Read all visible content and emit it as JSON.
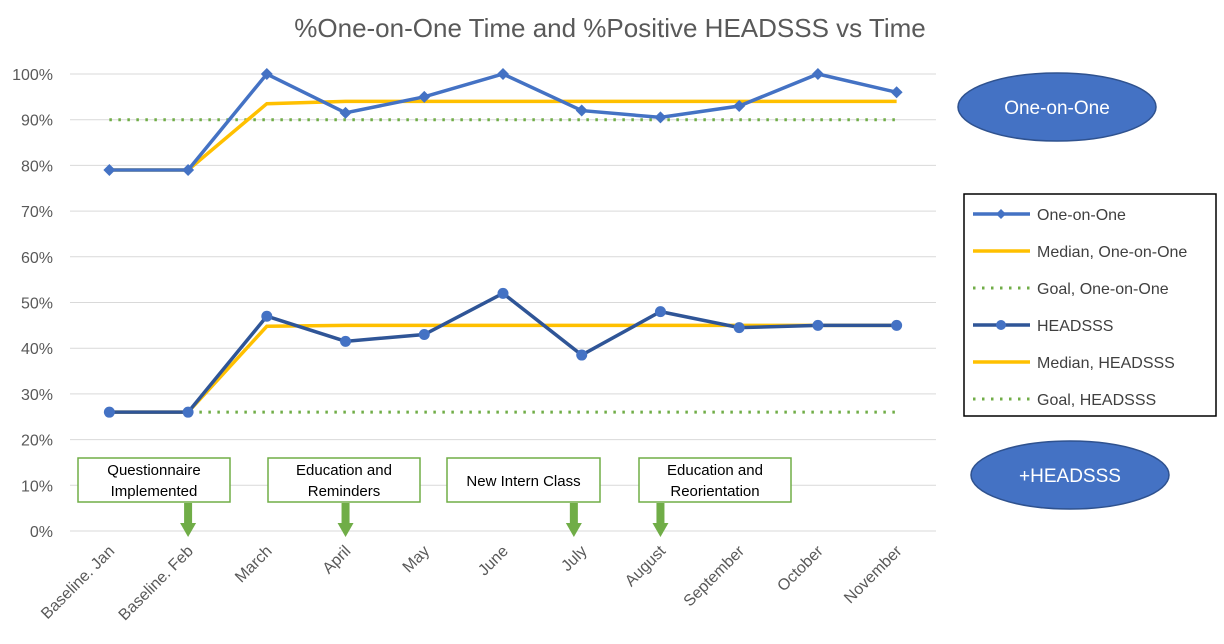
{
  "chart_data": {
    "type": "line",
    "title": "%One-on-One Time and %Positive HEADSSS vs Time",
    "xlabel": "",
    "ylabel": "",
    "categories": [
      "Baseline. Jan",
      "Baseline. Feb",
      "March",
      "April",
      "May",
      "June",
      "July",
      "August",
      "September",
      "October",
      "November"
    ],
    "ylim": [
      0,
      100
    ],
    "y_ticks": [
      "0%",
      "10%",
      "20%",
      "30%",
      "40%",
      "50%",
      "60%",
      "70%",
      "80%",
      "90%",
      "100%"
    ],
    "grid": true,
    "legend_position": "right",
    "series": [
      {
        "name": "One-on-One",
        "values": [
          79,
          79,
          100,
          91.5,
          95,
          100,
          92,
          90.5,
          93,
          100,
          96
        ],
        "color": "#4472C4",
        "style": "line",
        "marker": "diamond"
      },
      {
        "name": "Median, One-on-One",
        "values": [
          79,
          79,
          93.5,
          94,
          94,
          94,
          94,
          94,
          94,
          94,
          94
        ],
        "color": "#FFC000",
        "style": "line",
        "marker": "none"
      },
      {
        "name": "Goal, One-on-One",
        "values": [
          90,
          90,
          90,
          90,
          90,
          90,
          90,
          90,
          90,
          90,
          90
        ],
        "color": "#70AD47",
        "style": "dotted",
        "marker": "none"
      },
      {
        "name": "HEADSSS",
        "values": [
          26,
          26,
          47,
          41.5,
          43,
          52,
          38.5,
          48,
          44.5,
          45,
          45
        ],
        "color": "#2F5597",
        "style": "line",
        "marker": "circle"
      },
      {
        "name": "Median, HEADSSS",
        "values": [
          26,
          26,
          44.8,
          45,
          45,
          45,
          45,
          45,
          45,
          45,
          45
        ],
        "color": "#FFC000",
        "style": "line",
        "marker": "none"
      },
      {
        "name": "Goal, HEADSSS",
        "values": [
          26,
          26,
          26,
          26,
          26,
          26,
          26,
          26,
          26,
          26,
          26
        ],
        "color": "#70AD47",
        "style": "dotted",
        "marker": "none"
      }
    ],
    "annotations": [
      {
        "text": "Questionnaire Implemented",
        "line1": "Questionnaire",
        "line2": "Implemented",
        "arrow_at": 1
      },
      {
        "text": "Education and Reminders",
        "line1": "Education and",
        "line2": "Reminders",
        "arrow_at": 3
      },
      {
        "text": "New Intern Class",
        "line1": "New Intern Class",
        "line2": "",
        "arrow_at": 5.9
      },
      {
        "text": "Education and Reorientation",
        "line1": "Education and",
        "line2": "Reorientation",
        "arrow_at": 7
      }
    ],
    "series_labels": [
      {
        "text": "One-on-One",
        "color": "#4472C4"
      },
      {
        "text": "+HEADSSS",
        "color": "#4472C4"
      }
    ]
  },
  "colors": {
    "grid": "#D9D9D9",
    "annotation_box": "#70AD47",
    "arrow": "#70AD47",
    "legend_border": "#000000"
  }
}
